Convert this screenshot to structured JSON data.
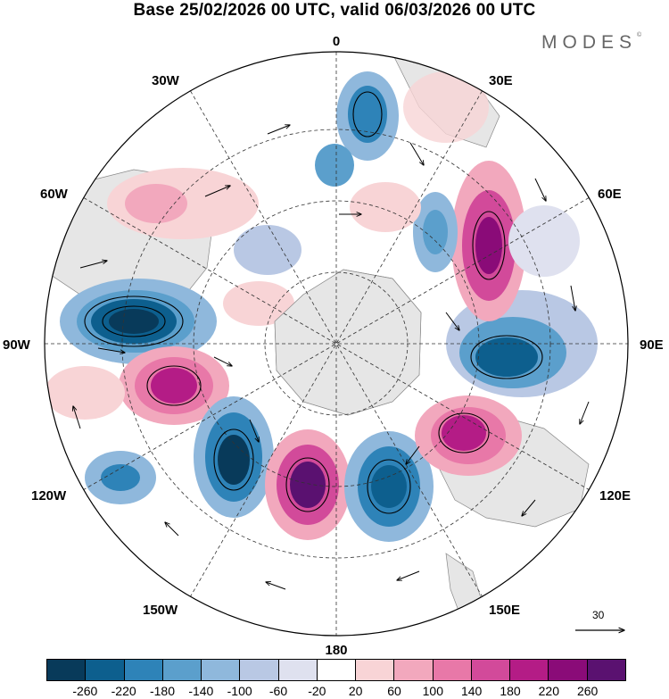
{
  "title": "Base 25/02/2026 00 UTC, valid 06/03/2026 00 UTC",
  "brand": "MODES",
  "brand_mark": "©",
  "map": {
    "projection": "south-polar-stereographic",
    "longitude_labels": {
      "top": "0",
      "bottom": "180",
      "left": "90W",
      "right": "90E",
      "upper_left_30": "30W",
      "upper_left_60": "60W",
      "upper_right_30": "30E",
      "upper_right_60": "60E",
      "lower_left_120": "120W",
      "lower_left_150": "150W",
      "lower_right_120": "120E",
      "lower_right_150": "150E"
    },
    "anomaly_centers": [
      {
        "sign": "negative",
        "value": -260,
        "lon_label": "90W"
      },
      {
        "sign": "positive",
        "value": 200,
        "lon_label": "100W"
      },
      {
        "sign": "negative",
        "value": -220,
        "lon_label": "140W"
      },
      {
        "sign": "positive",
        "value": 260,
        "lon_label": "170W"
      },
      {
        "sign": "negative",
        "value": -220,
        "lon_label": "160E"
      },
      {
        "sign": "positive",
        "value": 220,
        "lon_label": "130E"
      },
      {
        "sign": "negative",
        "value": -240,
        "lon_label": "90E"
      },
      {
        "sign": "positive",
        "value": 220,
        "lon_label": "50E"
      },
      {
        "sign": "negative",
        "value": -140,
        "lon_label": "30E"
      },
      {
        "sign": "negative",
        "value": -180,
        "lon_label": "10E"
      },
      {
        "sign": "positive",
        "value": 100,
        "lon_label": "50W"
      }
    ],
    "reference_vector": "30"
  },
  "colorbar": {
    "ticks": [
      "-260",
      "-220",
      "-180",
      "-140",
      "-100",
      "-60",
      "-20",
      "20",
      "60",
      "100",
      "140",
      "180",
      "220",
      "260"
    ],
    "colors": [
      "#083a5a",
      "#0d5f8e",
      "#2e83b8",
      "#5b9fcc",
      "#8fb8dc",
      "#b9c8e4",
      "#dfe1ef",
      "#ffffff",
      "#f8d4d6",
      "#f2a8bd",
      "#e878a8",
      "#d24a9a",
      "#b41c86",
      "#8a0b78",
      "#5a1170"
    ]
  }
}
